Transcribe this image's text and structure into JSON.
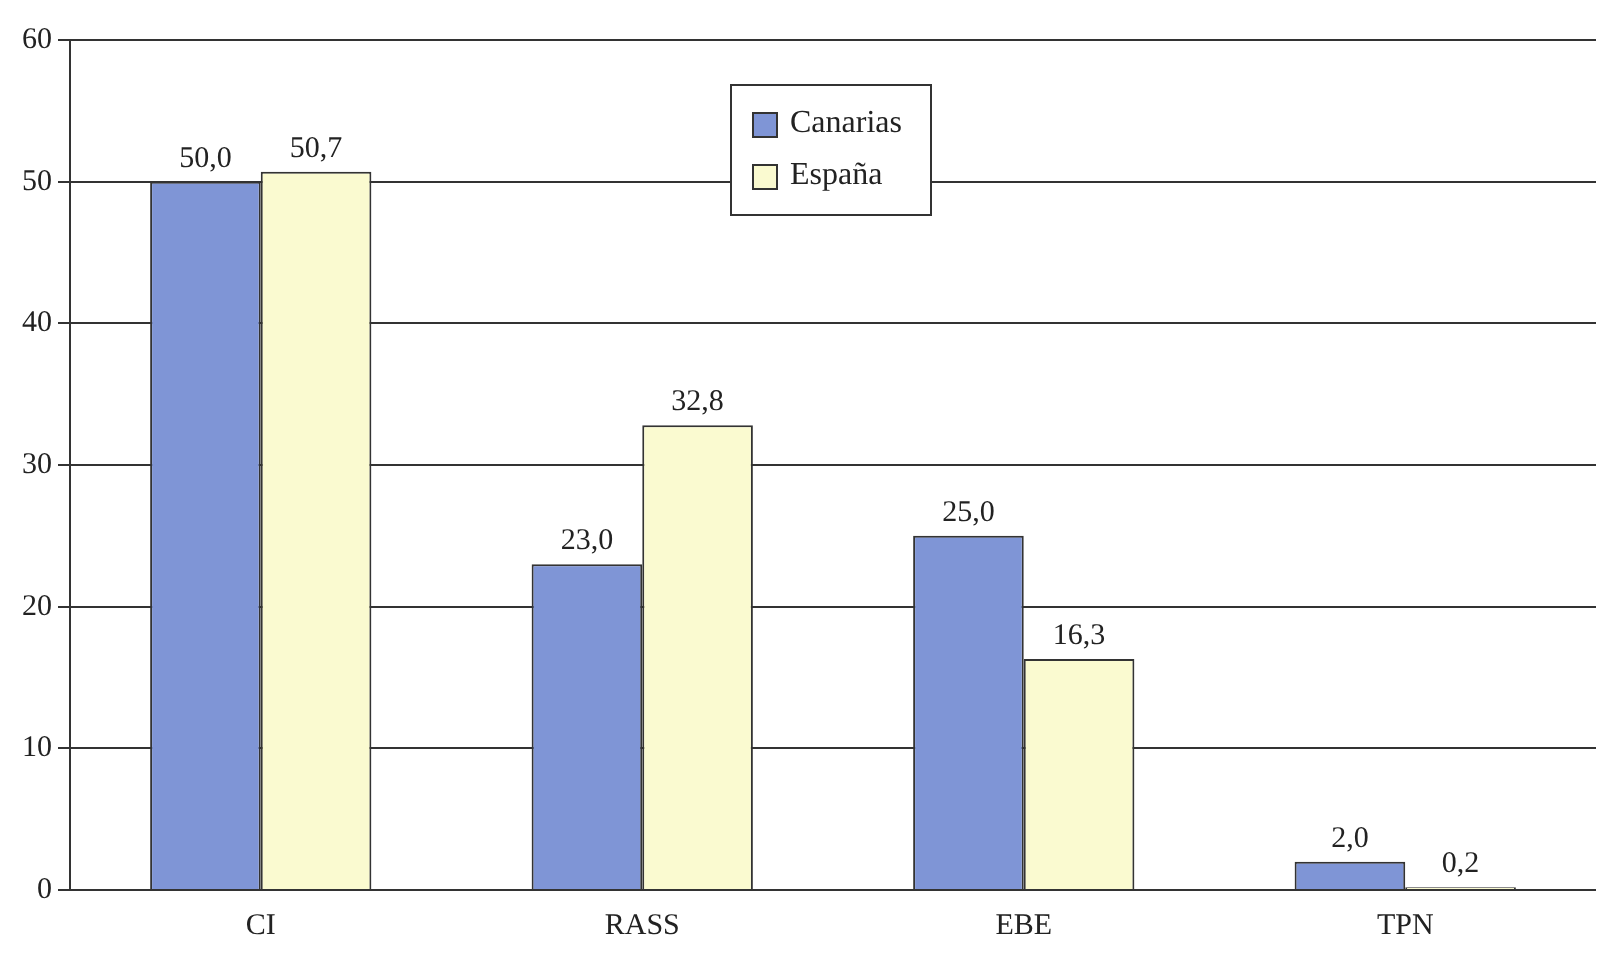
{
  "chart_data": {
    "type": "bar",
    "categories": [
      "CI",
      "RASS",
      "EBE",
      "TPN"
    ],
    "series": [
      {
        "name": "Canarias",
        "color": "#7f95d6",
        "values": [
          50.0,
          23.0,
          25.0,
          2.0
        ],
        "value_labels": [
          "50,0",
          "23,0",
          "25,0",
          "2,0"
        ]
      },
      {
        "name": "España",
        "color": "#fafad0",
        "values": [
          50.7,
          32.8,
          16.3,
          0.2
        ],
        "value_labels": [
          "50,7",
          "32,8",
          "16,3",
          "0,2"
        ]
      }
    ],
    "ylim": [
      0,
      60
    ],
    "yticks": [
      0,
      10,
      20,
      30,
      40,
      50,
      60
    ],
    "grid": "y",
    "legend": "top"
  }
}
